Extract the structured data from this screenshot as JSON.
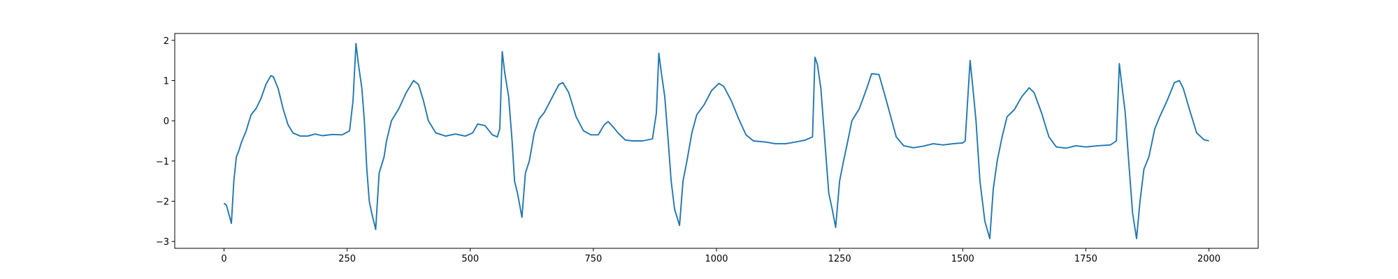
{
  "chart_data": {
    "type": "line",
    "x": [
      0,
      5,
      15,
      20,
      25,
      30,
      35,
      45,
      55,
      65,
      75,
      85,
      95,
      100,
      110,
      120,
      130,
      140,
      155,
      170,
      185,
      200,
      220,
      240,
      255,
      262,
      268,
      273,
      280,
      285,
      290,
      295,
      300,
      308,
      315,
      325,
      330,
      340,
      355,
      370,
      385,
      395,
      405,
      415,
      430,
      450,
      470,
      490,
      505,
      515,
      530,
      545,
      555,
      560,
      565,
      570,
      578,
      585,
      590,
      596,
      605,
      612,
      620,
      630,
      640,
      650,
      665,
      680,
      688,
      700,
      715,
      730,
      745,
      760,
      772,
      780,
      790,
      800,
      815,
      830,
      850,
      870,
      878,
      883,
      888,
      895,
      902,
      908,
      915,
      925,
      932,
      940,
      950,
      960,
      975,
      990,
      1005,
      1015,
      1030,
      1045,
      1060,
      1075,
      1100,
      1120,
      1140,
      1160,
      1180,
      1195,
      1200,
      1205,
      1212,
      1220,
      1228,
      1235,
      1242,
      1250,
      1258,
      1265,
      1275,
      1290,
      1305,
      1315,
      1330,
      1345,
      1365,
      1380,
      1400,
      1420,
      1440,
      1460,
      1480,
      1500,
      1505,
      1510,
      1515,
      1520,
      1527,
      1535,
      1545,
      1555,
      1562,
      1570,
      1580,
      1590,
      1605,
      1620,
      1635,
      1645,
      1660,
      1675,
      1690,
      1710,
      1730,
      1750,
      1775,
      1800,
      1812,
      1818,
      1823,
      1830,
      1837,
      1845,
      1853,
      1860,
      1868,
      1878,
      1890,
      1900,
      1915,
      1930,
      1940,
      1948,
      1960,
      1975,
      1990,
      2000
    ],
    "series": [
      {
        "color": "#1f77b4",
        "values": [
          -2.05,
          -2.1,
          -2.55,
          -1.5,
          -0.9,
          -0.75,
          -0.55,
          -0.25,
          0.15,
          0.3,
          0.55,
          0.9,
          1.12,
          1.1,
          0.8,
          0.3,
          -0.1,
          -0.3,
          -0.38,
          -0.38,
          -0.33,
          -0.37,
          -0.34,
          -0.35,
          -0.25,
          0.5,
          1.92,
          1.4,
          0.8,
          0,
          -1.2,
          -2.0,
          -2.3,
          -2.7,
          -1.3,
          -0.9,
          -0.5,
          0,
          0.3,
          0.7,
          1.0,
          0.9,
          0.5,
          0,
          -0.3,
          -0.38,
          -0.33,
          -0.38,
          -0.3,
          -0.08,
          -0.12,
          -0.35,
          -0.4,
          -0.2,
          1.72,
          1.2,
          0.6,
          -0.5,
          -1.5,
          -1.8,
          -2.4,
          -1.3,
          -1.0,
          -0.3,
          0.05,
          0.2,
          0.55,
          0.9,
          0.95,
          0.7,
          0.1,
          -0.25,
          -0.35,
          -0.35,
          -0.1,
          -0.02,
          -0.15,
          -0.3,
          -0.48,
          -0.5,
          -0.5,
          -0.45,
          0.2,
          1.68,
          1.2,
          0.6,
          -0.5,
          -1.5,
          -2.2,
          -2.6,
          -1.5,
          -1.0,
          -0.3,
          0.15,
          0.4,
          0.75,
          0.93,
          0.85,
          0.5,
          0.05,
          -0.35,
          -0.5,
          -0.53,
          -0.57,
          -0.57,
          -0.53,
          -0.48,
          -0.4,
          1.58,
          1.4,
          0.8,
          -0.5,
          -1.8,
          -2.2,
          -2.65,
          -1.5,
          -1.0,
          -0.6,
          0,
          0.3,
          0.8,
          1.17,
          1.15,
          0.5,
          -0.4,
          -0.62,
          -0.67,
          -0.63,
          -0.57,
          -0.6,
          -0.57,
          -0.55,
          -0.5,
          0.5,
          1.5,
          0.9,
          0.0,
          -1.5,
          -2.5,
          -2.93,
          -1.7,
          -1.0,
          -0.4,
          0.1,
          0.28,
          0.6,
          0.82,
          0.7,
          0.2,
          -0.4,
          -0.65,
          -0.68,
          -0.62,
          -0.65,
          -0.62,
          -0.6,
          -0.5,
          1.42,
          0.9,
          0.2,
          -1.0,
          -2.3,
          -2.93,
          -2.0,
          -1.2,
          -0.9,
          -0.2,
          0.1,
          0.5,
          0.95,
          1.0,
          0.8,
          0.3,
          -0.3,
          -0.47,
          -0.5
        ]
      }
    ],
    "xlim": [
      -100,
      2100
    ],
    "ylim": [
      -3.17,
      2.17
    ],
    "xticks": [
      0,
      250,
      500,
      750,
      1000,
      1250,
      1500,
      1750,
      2000
    ],
    "yticks": [
      {
        "value": -3,
        "label": "−3"
      },
      {
        "value": -2,
        "label": "−2"
      },
      {
        "value": -1,
        "label": "−1"
      },
      0,
      1,
      2
    ]
  }
}
